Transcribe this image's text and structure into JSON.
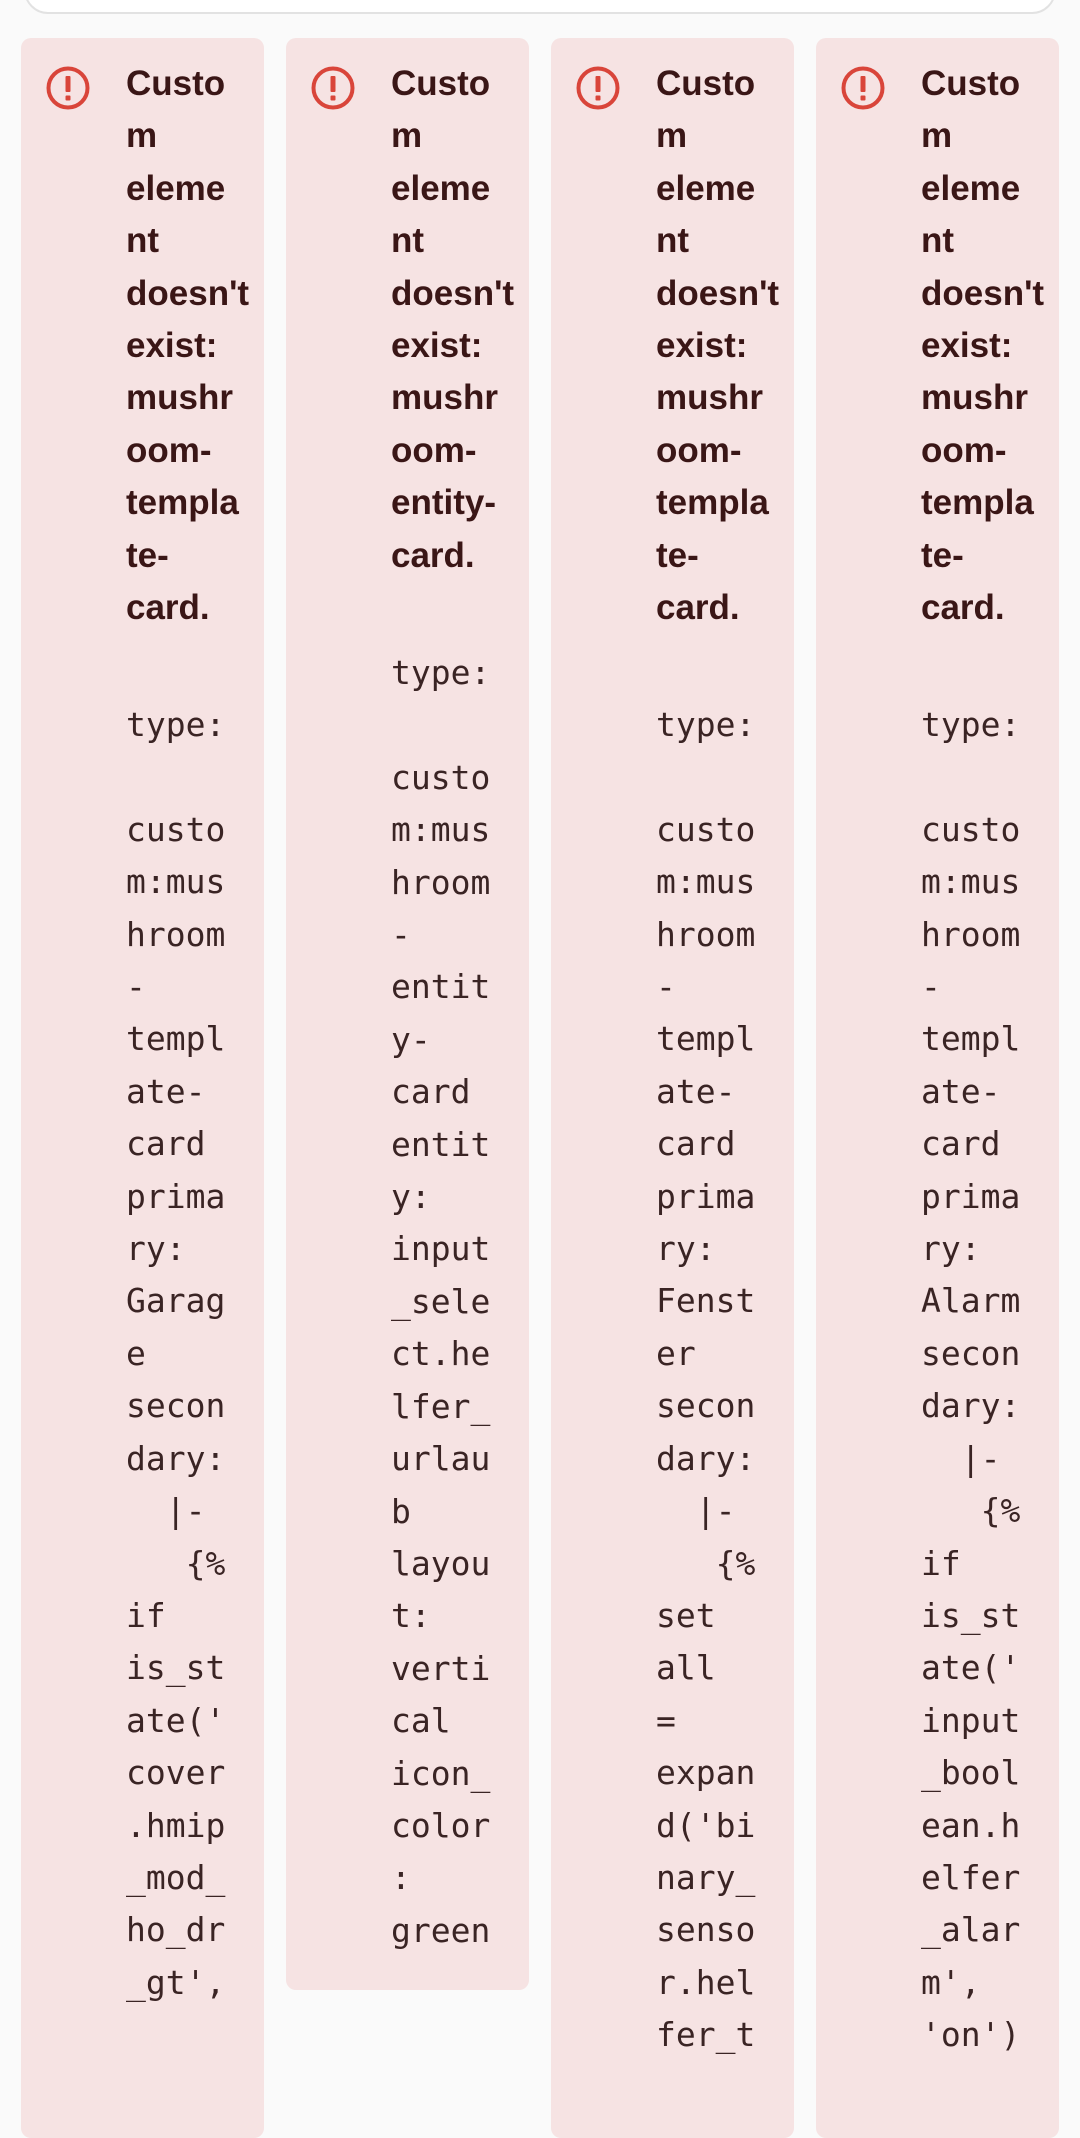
{
  "colors": {
    "card_background": "#f6e3e3",
    "icon_color": "#d9453a",
    "title_color": "#3a1616",
    "code_color": "#3a2424"
  },
  "cards": [
    {
      "icon": "alert-circle-icon",
      "title_lines": [
        "Custo",
        "m",
        "eleme",
        "nt",
        "doesn't",
        "exist:",
        "mushr",
        "oom-",
        "templa",
        "te-",
        "card."
      ],
      "yaml_lines": [
        "type:",
        "",
        "custo",
        "m:mus",
        "hroom",
        "-",
        "templ",
        "ate-",
        "card",
        "prima",
        "ry:",
        "Garag",
        "e",
        "secon",
        "dary:",
        "  |-",
        "   {%",
        "if",
        "is_st",
        "ate('",
        "cover",
        ".hmip",
        "_mod_",
        "ho_dr",
        "_gt',"
      ]
    },
    {
      "icon": "alert-circle-icon",
      "title_lines": [
        "Custo",
        "m",
        "eleme",
        "nt",
        "doesn't",
        "exist:",
        "mushr",
        "oom-",
        "entity-",
        "card."
      ],
      "yaml_lines": [
        "type:",
        "",
        "custo",
        "m:mus",
        "hroom",
        "-",
        "entit",
        "y-",
        "card",
        "entit",
        "y:",
        "input",
        "_sele",
        "ct.he",
        "lfer_",
        "urlau",
        "b",
        "layou",
        "t:",
        "verti",
        "cal",
        "icon_",
        "color",
        ":",
        "green"
      ]
    },
    {
      "icon": "alert-circle-icon",
      "title_lines": [
        "Custo",
        "m",
        "eleme",
        "nt",
        "doesn't",
        "exist:",
        "mushr",
        "oom-",
        "templa",
        "te-",
        "card."
      ],
      "yaml_lines": [
        "type:",
        "",
        "custo",
        "m:mus",
        "hroom",
        "-",
        "templ",
        "ate-",
        "card",
        "prima",
        "ry:",
        "Fenst",
        "er",
        "secon",
        "dary:",
        "  |-",
        "   {%",
        "set",
        "all",
        "=",
        "expan",
        "d('bi",
        "nary_",
        "senso",
        "r.hel",
        "fer_t"
      ]
    },
    {
      "icon": "alert-circle-icon",
      "title_lines": [
        "Custo",
        "m",
        "eleme",
        "nt",
        "doesn't",
        "exist:",
        "mushr",
        "oom-",
        "templa",
        "te-",
        "card."
      ],
      "yaml_lines": [
        "type:",
        "",
        "custo",
        "m:mus",
        "hroom",
        "-",
        "templ",
        "ate-",
        "card",
        "prima",
        "ry:",
        "Alarm",
        "secon",
        "dary:",
        "  |-",
        "   {%",
        "if",
        "is_st",
        "ate('",
        "input",
        "_bool",
        "ean.h",
        "elfer",
        "_alar",
        "m',",
        "'on')"
      ]
    }
  ]
}
